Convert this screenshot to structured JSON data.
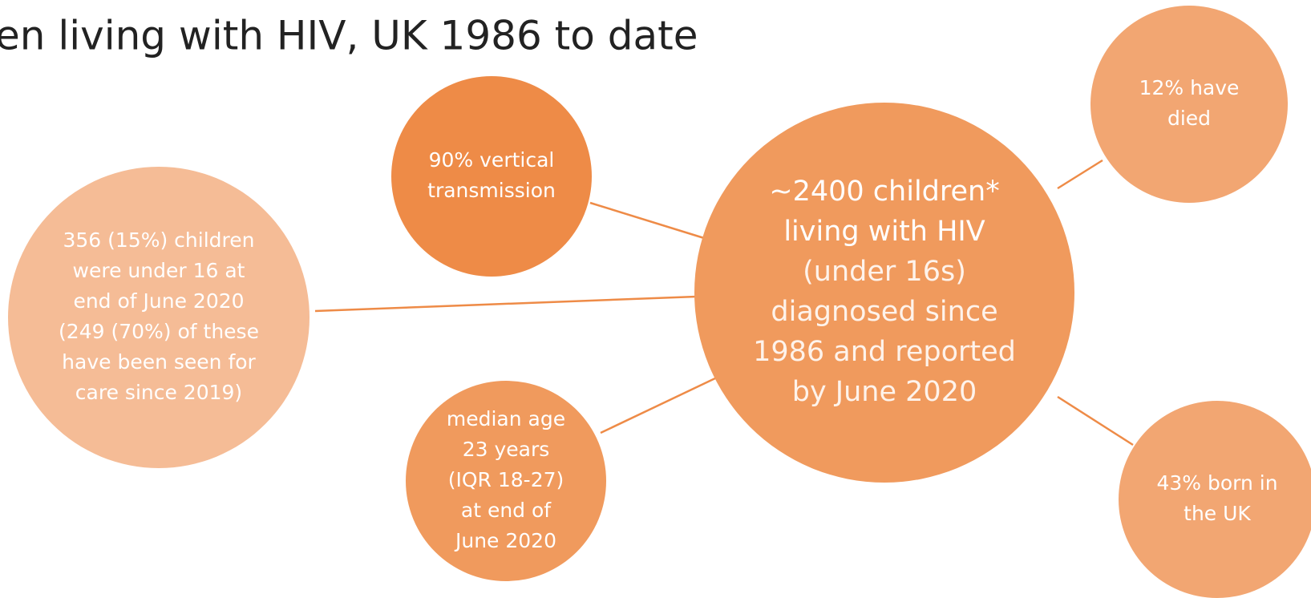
{
  "title": "en living with HIV, UK 1986 to date",
  "center": {
    "heading": [
      "~2400 children*",
      "living with HIV"
    ],
    "details": [
      "(under 16s)",
      "diagnosed since",
      "1986 and reported",
      "by June 2020"
    ]
  },
  "nodes": [
    {
      "lines": [
        "90% vertical",
        "transmission"
      ]
    },
    {
      "lines": [
        "356 (15%) children",
        "were under 16 at",
        "end of June 2020",
        "(249 (70%) of these",
        "have been seen for",
        "care since 2019)"
      ]
    },
    {
      "lines": [
        "median age",
        "23 years",
        "(IQR 18-27)",
        "at end of",
        "June 2020"
      ]
    },
    {
      "lines": [
        "12% have",
        "died"
      ]
    },
    {
      "lines": [
        "43% born in",
        "the UK"
      ]
    }
  ]
}
